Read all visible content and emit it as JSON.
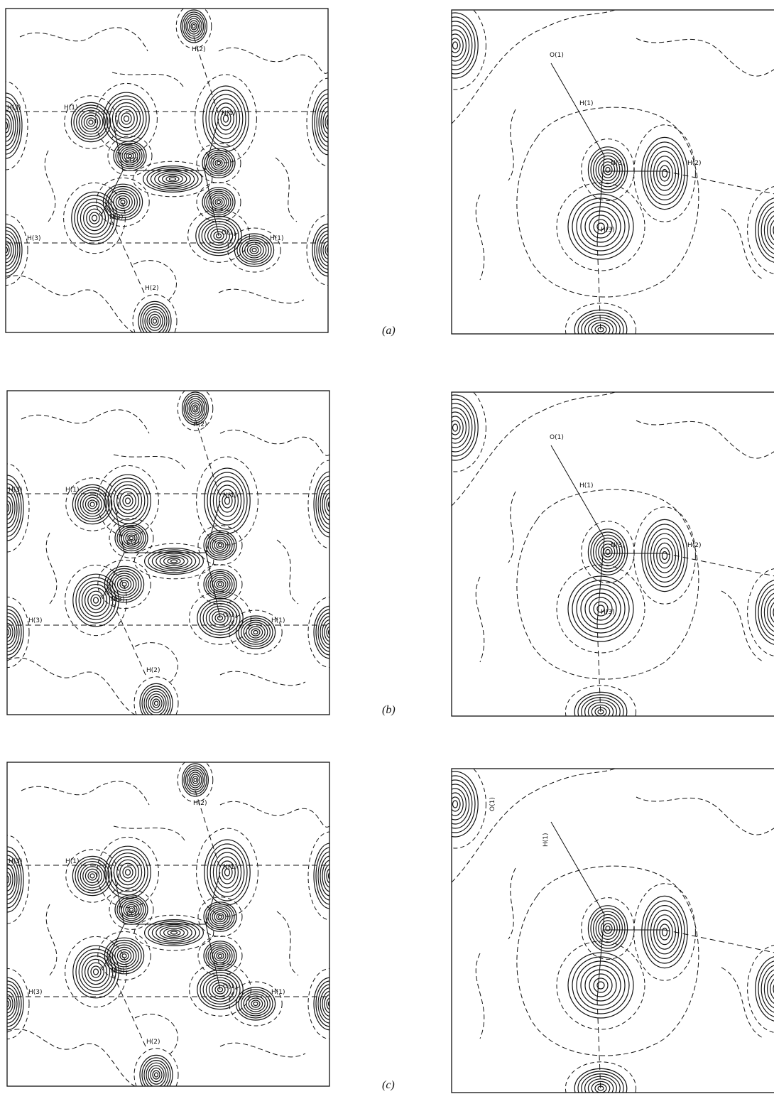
{
  "panels": [
    {
      "label": "(a)",
      "left_atoms": [
        "H(3)",
        "H(1)",
        "H(2)",
        "C(1)",
        "N(1)",
        "N(3)",
        "O(1)",
        "H(1)",
        "H(3)",
        "H(2)"
      ],
      "right_atoms": [
        "O(1)",
        "H(1)",
        "N(3)",
        "H(2)",
        "H(3)"
      ]
    },
    {
      "label": "(b)",
      "left_atoms": [
        "H(3)",
        "H(1)",
        "H(2)",
        "C(1)",
        "N(1)",
        "N(3)",
        "O(1)",
        "H(1)",
        "H(3)",
        "H(2)"
      ],
      "right_atoms": [
        "O(1)",
        "H(1)",
        "N(3)",
        "H(2)",
        "H(3)"
      ]
    },
    {
      "label": "(c)",
      "left_atoms": [
        "H(3)",
        "H(1)",
        "H(2)",
        "C(1)",
        "N(1)",
        "N(3)",
        "O(1)",
        "H(1)",
        "H(3)",
        "H(2)"
      ],
      "right_atoms": [
        "O(1)",
        "H(1)"
      ]
    }
  ]
}
